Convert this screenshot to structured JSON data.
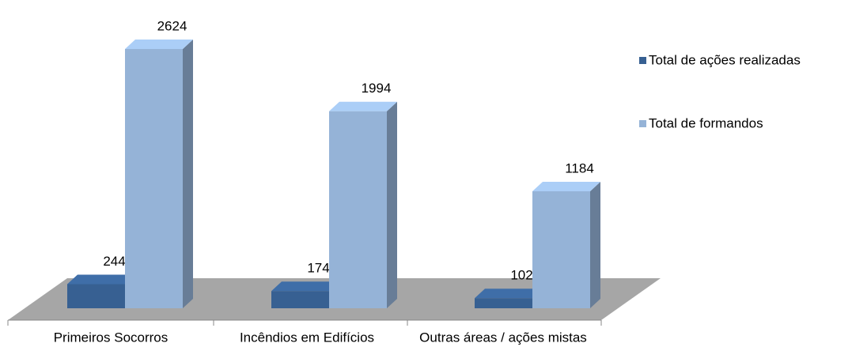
{
  "chart_data": {
    "type": "bar3d",
    "categories": [
      "Primeiros Socorros",
      "Incêndios em Edifícios",
      "Outras áreas / ações mistas"
    ],
    "series": [
      {
        "name": "Total de ações realizadas",
        "color": "#376092",
        "values": [
          244,
          174,
          102
        ]
      },
      {
        "name": "Total de formandos",
        "color": "#95b3d7",
        "values": [
          2624,
          1994,
          1184
        ]
      }
    ],
    "legend": "right"
  }
}
